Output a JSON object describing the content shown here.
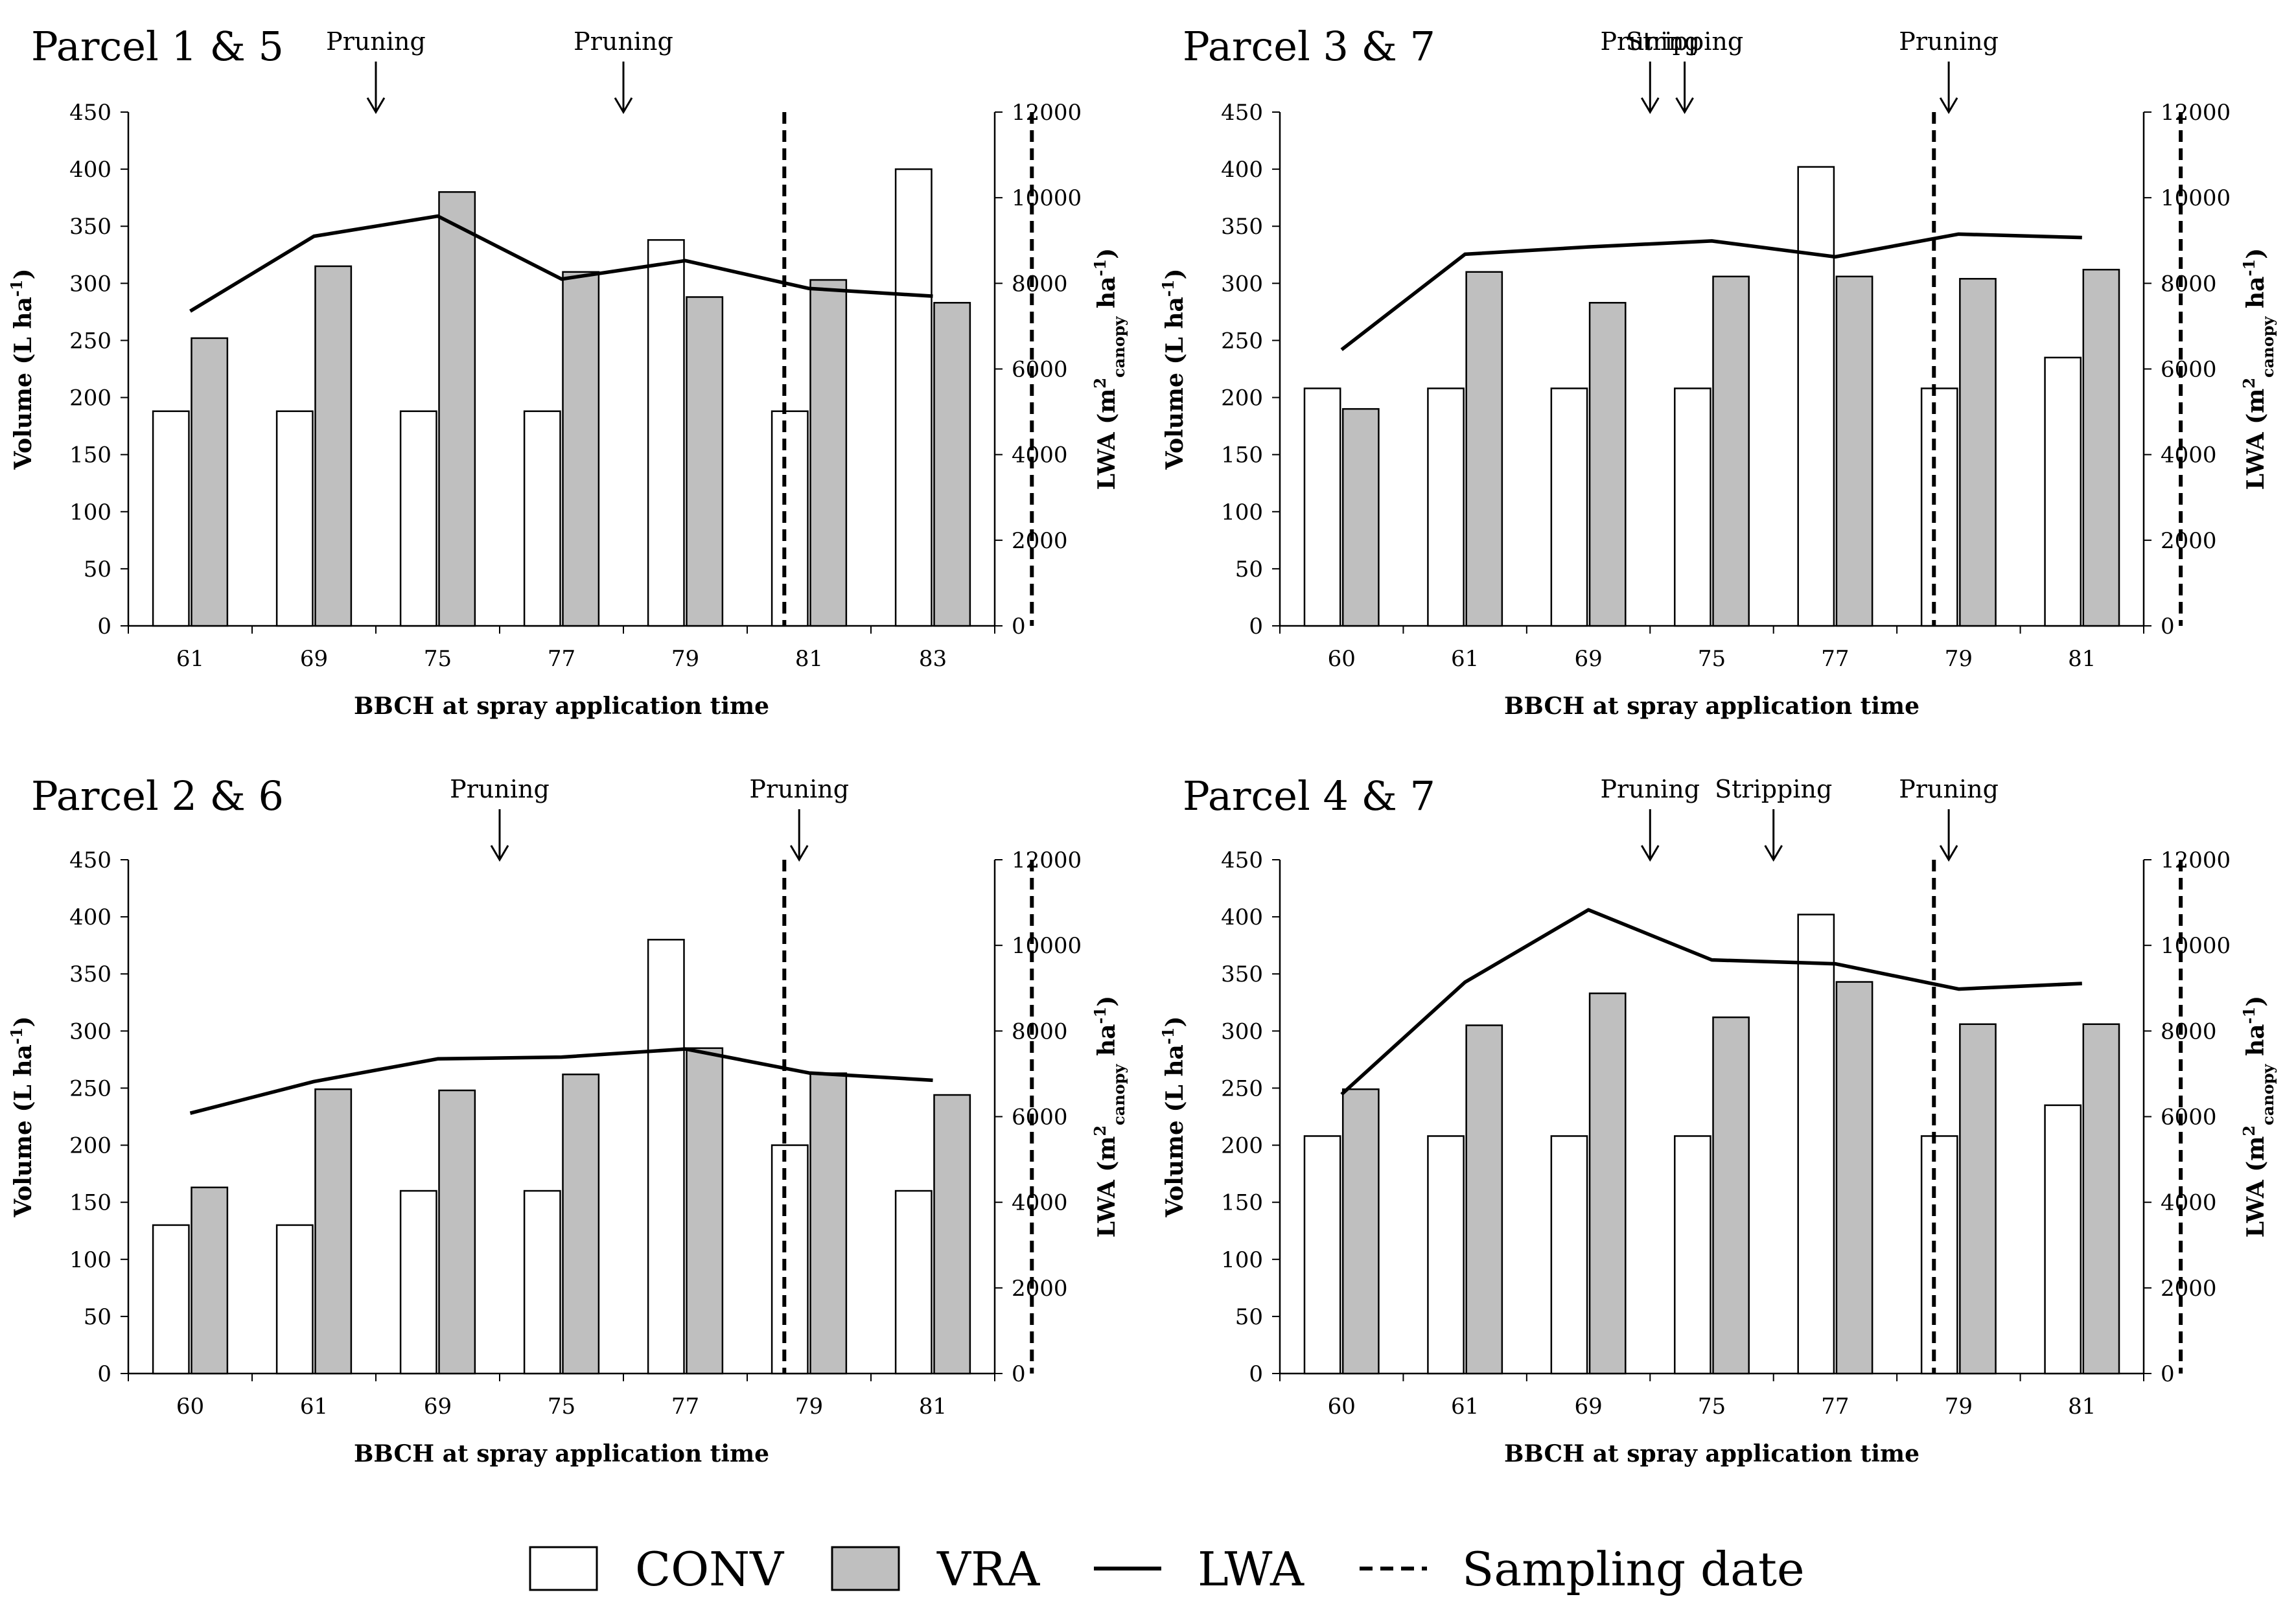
{
  "figure": {
    "legend": {
      "conv": "CONV",
      "vra": "VRA",
      "lwa": "LWA",
      "sampling": "Sampling date"
    },
    "colors": {
      "conv_fill": "#ffffff",
      "vra_fill": "#bfbfbf",
      "line": "#000000"
    }
  },
  "chart_data": [
    {
      "type": "bar",
      "title": "Parcel 1 & 5",
      "xlabel": "BBCH at spray application time",
      "ylabel": "Volume (L ha⁻¹)",
      "y2label": "LWA (m²canopy ha⁻¹)",
      "ylim": [
        0,
        450
      ],
      "y2lim": [
        0,
        12000
      ],
      "yticks": [
        "0",
        "50",
        "100",
        "150",
        "200",
        "250",
        "300",
        "350",
        "400",
        "450"
      ],
      "y2ticks": [
        "0",
        "2000",
        "4000",
        "6000",
        "8000",
        "10000",
        "12000"
      ],
      "categories": [
        "61",
        "69",
        "75",
        "77",
        "79",
        "81",
        "83"
      ],
      "series": [
        {
          "name": "CONV",
          "values": [
            188,
            188,
            188,
            188,
            338,
            188,
            400
          ]
        },
        {
          "name": "VRA",
          "values": [
            252,
            315,
            380,
            310,
            288,
            303,
            283
          ]
        },
        {
          "name": "LWA",
          "axis": "right",
          "values": [
            7350,
            9100,
            9570,
            8100,
            8530,
            7880,
            7700
          ]
        }
      ],
      "sampling_dates_after_index": [
        4.8,
        6.8
      ],
      "events": [
        {
          "label": "Pruning",
          "after_index": 1.5
        },
        {
          "label": "Pruning",
          "after_index": 3.5
        }
      ]
    },
    {
      "type": "bar",
      "title": "Parcel 3 & 7",
      "xlabel": "BBCH at spray application time",
      "ylabel": "Volume (L ha⁻¹)",
      "y2label": "LWA (m²canopy ha⁻¹)",
      "ylim": [
        0,
        450
      ],
      "y2lim": [
        0,
        12000
      ],
      "yticks": [
        "0",
        "50",
        "100",
        "150",
        "200",
        "250",
        "300",
        "350",
        "400",
        "450"
      ],
      "y2ticks": [
        "0",
        "2000",
        "4000",
        "6000",
        "8000",
        "10000",
        "12000"
      ],
      "categories": [
        "60",
        "61",
        "69",
        "75",
        "77",
        "79",
        "81"
      ],
      "series": [
        {
          "name": "CONV",
          "values": [
            208,
            208,
            208,
            208,
            402,
            208,
            235
          ]
        },
        {
          "name": "VRA",
          "values": [
            190,
            310,
            283,
            306,
            306,
            304,
            312
          ]
        },
        {
          "name": "LWA",
          "axis": "right",
          "values": [
            6450,
            8680,
            8850,
            8990,
            8620,
            9150,
            9070
          ]
        }
      ],
      "sampling_dates_after_index": [
        4.8,
        6.8
      ],
      "events": [
        {
          "label": "Pruning",
          "after_index": 2.5
        },
        {
          "label": "Stripping",
          "after_index": 2.78
        },
        {
          "label": "Pruning",
          "after_index": 4.92
        }
      ]
    },
    {
      "type": "bar",
      "title": "Parcel 2 & 6",
      "xlabel": "BBCH at spray application time",
      "ylabel": "Volume (L ha⁻¹)",
      "y2label": "LWA (m²canopy ha⁻¹)",
      "ylim": [
        0,
        450
      ],
      "y2lim": [
        0,
        12000
      ],
      "yticks": [
        "0",
        "50",
        "100",
        "150",
        "200",
        "250",
        "300",
        "350",
        "400",
        "450"
      ],
      "y2ticks": [
        "0",
        "2000",
        "4000",
        "6000",
        "8000",
        "10000",
        "12000"
      ],
      "categories": [
        "60",
        "61",
        "69",
        "75",
        "77",
        "79",
        "81"
      ],
      "series": [
        {
          "name": "CONV",
          "values": [
            130,
            130,
            160,
            160,
            380,
            200,
            160
          ]
        },
        {
          "name": "VRA",
          "values": [
            163,
            249,
            248,
            262,
            285,
            263,
            244
          ]
        },
        {
          "name": "LWA",
          "axis": "right",
          "values": [
            6080,
            6820,
            7350,
            7390,
            7580,
            7020,
            6850
          ]
        }
      ],
      "sampling_dates_after_index": [
        4.8,
        6.8
      ],
      "events": [
        {
          "label": "Pruning",
          "after_index": 2.5
        },
        {
          "label": "Pruning",
          "after_index": 4.92
        }
      ]
    },
    {
      "type": "bar",
      "title": "Parcel 4 & 7",
      "xlabel": "BBCH at spray application time",
      "ylabel": "Volume (L ha⁻¹)",
      "y2label": "LWA (m²canopy ha⁻¹)",
      "ylim": [
        0,
        450
      ],
      "y2lim": [
        0,
        12000
      ],
      "yticks": [
        "0",
        "50",
        "100",
        "150",
        "200",
        "250",
        "300",
        "350",
        "400",
        "450"
      ],
      "y2ticks": [
        "0",
        "2000",
        "4000",
        "6000",
        "8000",
        "10000",
        "12000"
      ],
      "categories": [
        "60",
        "61",
        "69",
        "75",
        "77",
        "79",
        "81"
      ],
      "series": [
        {
          "name": "CONV",
          "values": [
            208,
            208,
            208,
            208,
            402,
            208,
            235
          ]
        },
        {
          "name": "VRA",
          "values": [
            249,
            305,
            333,
            312,
            343,
            306,
            306
          ]
        },
        {
          "name": "LWA",
          "axis": "right",
          "values": [
            6520,
            9140,
            10830,
            9660,
            9570,
            8980,
            9110
          ]
        }
      ],
      "sampling_dates_after_index": [
        4.8,
        6.8
      ],
      "events": [
        {
          "label": "Pruning",
          "after_index": 2.5
        },
        {
          "label": "Stripping",
          "after_index": 3.5
        },
        {
          "label": "Pruning",
          "after_index": 4.92
        }
      ]
    }
  ]
}
